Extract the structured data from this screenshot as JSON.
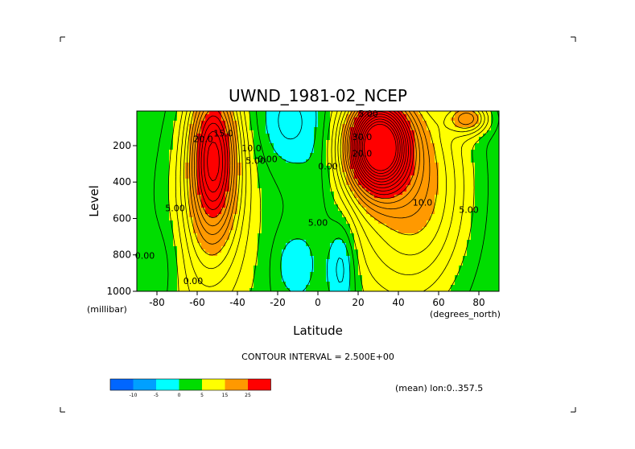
{
  "page": {
    "background": "#ffffff"
  },
  "chart_data": {
    "type": "heatmap",
    "title": "UWND_1981-02_NCEP",
    "xlabel": "Latitude",
    "ylabel": "Level",
    "x_unit": "(degrees_north)",
    "y_unit": "(millibar)",
    "xlim": [
      -90,
      90
    ],
    "ylim": [
      1000,
      10
    ],
    "x_ticks": [
      -80,
      -60,
      -40,
      -20,
      0,
      20,
      40,
      60,
      80
    ],
    "x_tick_labels": [
      "-80",
      "-60",
      "-40",
      "-20",
      "0",
      "20",
      "40",
      "60",
      "80"
    ],
    "y_ticks": [
      200,
      400,
      600,
      800,
      1000
    ],
    "y_tick_labels": [
      "200",
      "400",
      "600",
      "800",
      "1000"
    ],
    "contour_interval_text": "CONTOUR INTERVAL = 2.500E+00",
    "mean_text": "(mean) lon:0..357.5",
    "color_levels": [
      -10,
      -5,
      0,
      5,
      15,
      25
    ],
    "color_level_labels": [
      "-10",
      "-5",
      "0",
      "5",
      "15",
      "25"
    ],
    "colors": [
      "#0066ff",
      "#00a0ff",
      "#00ffff",
      "#00dd00",
      "#ffff00",
      "#ff9900",
      "#ff0000"
    ],
    "features": [
      {
        "type": "southern_jet_core",
        "lat": -52,
        "level": 250,
        "value": 30
      },
      {
        "type": "northern_jet_core",
        "lat": 30,
        "level": 200,
        "value": 47.5
      },
      {
        "type": "easterly_minimum",
        "lat": 12,
        "level": 850,
        "value": -7.5
      },
      {
        "type": "polar_jet",
        "lat": 75,
        "level": 50,
        "value": 15
      }
    ],
    "contour_labels": [
      {
        "text": "20.0",
        "lat": -57,
        "level": 180
      },
      {
        "text": "15.0",
        "lat": -47,
        "level": 150
      },
      {
        "text": "10.0",
        "lat": -33,
        "level": 230
      },
      {
        "text": "5.00",
        "lat": -31,
        "level": 300
      },
      {
        "text": "0.00",
        "lat": -25,
        "level": 290
      },
      {
        "text": "0.00",
        "lat": 5,
        "level": 330
      },
      {
        "text": "5.00",
        "lat": 0,
        "level": 640
      },
      {
        "text": "30.0",
        "lat": 22,
        "level": 170
      },
      {
        "text": "20.0",
        "lat": 22,
        "level": 260
      },
      {
        "text": "10.0",
        "lat": 52,
        "level": 530
      },
      {
        "text": "5.00",
        "lat": 75,
        "level": 570
      },
      {
        "text": "5.00",
        "lat": -71,
        "level": 560
      },
      {
        "text": "0.00",
        "lat": -86,
        "level": 820
      },
      {
        "text": "0.00",
        "lat": -62,
        "level": 960
      },
      {
        "text": "5.00",
        "lat": 25,
        "level": 40
      }
    ]
  }
}
